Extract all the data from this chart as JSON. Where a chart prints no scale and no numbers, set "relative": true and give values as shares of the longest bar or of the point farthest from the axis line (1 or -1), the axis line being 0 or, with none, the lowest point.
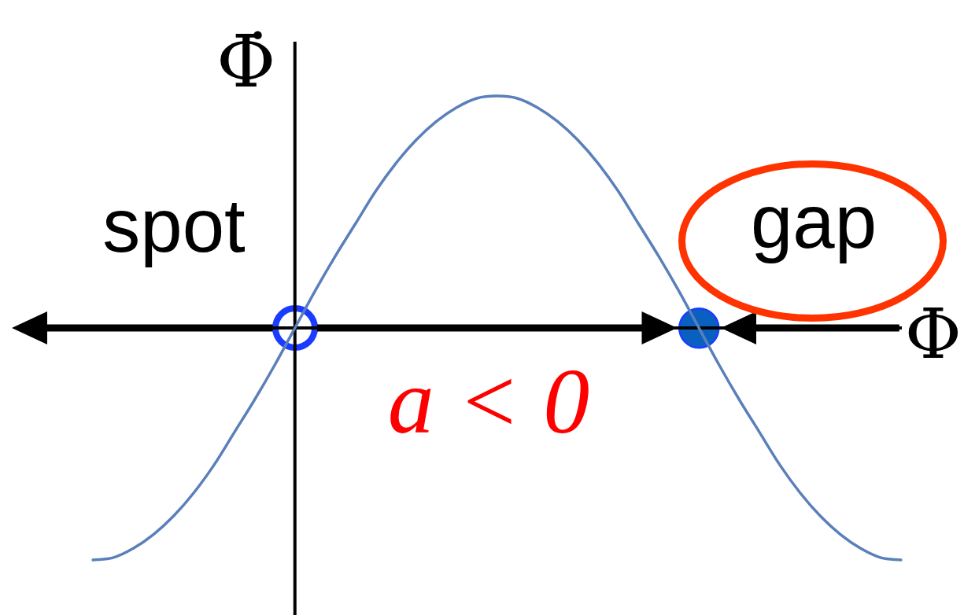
{
  "chart_data": {
    "type": "line",
    "xlabel": "Φ",
    "ylabel": "Φ̇",
    "relative": true,
    "legend": false,
    "grid": false,
    "marker": "none",
    "categories": [
      null,
      null,
      null,
      null,
      null,
      null,
      null,
      null,
      null,
      null,
      null,
      null,
      null,
      null,
      null,
      null,
      null,
      null,
      null,
      null,
      null,
      null,
      null,
      null,
      null,
      null,
      null,
      null,
      null,
      null,
      null,
      null,
      null,
      null,
      null,
      null,
      null,
      null,
      null,
      null,
      null
    ],
    "series": [
      {
        "type": "line",
        "color": "#5a7fba",
        "values": [
          -1,
          -0.99,
          -0.95,
          -0.89,
          -0.81,
          -0.71,
          -0.59,
          -0.45,
          -0.31,
          -0.16,
          0,
          0.16,
          0.31,
          0.45,
          0.59,
          0.71,
          0.81,
          0.89,
          0.95,
          0.99,
          1,
          0.99,
          0.95,
          0.89,
          0.81,
          0.71,
          0.59,
          0.45,
          0.31,
          0.16,
          0,
          -0.16,
          -0.31,
          -0.45,
          -0.59,
          -0.71,
          -0.81,
          -0.89,
          -0.95,
          -0.99,
          -1
        ]
      }
    ],
    "annotations": [
      "spot",
      "gap",
      "a < 0"
    ]
  }
}
